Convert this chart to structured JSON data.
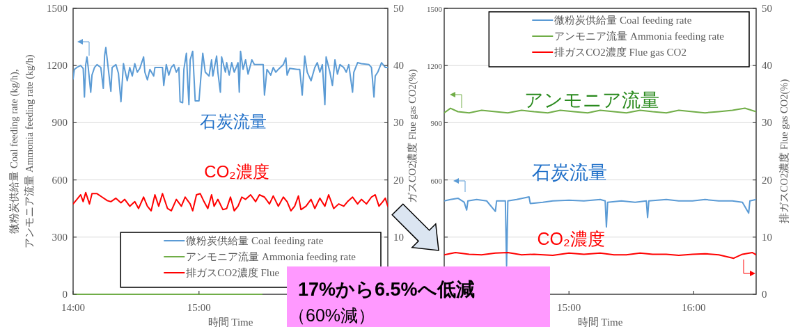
{
  "chart_data": [
    {
      "type": "line",
      "xlabel": "時間 Time",
      "ylabel": "微粉炭供給量 Coal feeding rate (kg/h),\nアンモニア流量 Ammonia feeding rate (kg/h)",
      "y2label": "ガスCO2濃度 Flue gas CO2(%)",
      "xlim": [
        14,
        16.5
      ],
      "xticks": [
        {
          "value": 14,
          "label": "14:00"
        },
        {
          "value": 15,
          "label": "15:00"
        },
        {
          "value": 16,
          "label": null
        }
      ],
      "ylim": [
        0,
        1500
      ],
      "yticks": [
        0,
        300,
        600,
        900,
        1200,
        1500
      ],
      "y2lim": [
        0,
        50
      ],
      "y2ticks": [
        10,
        20,
        30,
        40,
        50
      ],
      "grid": "y",
      "legend": "bottom right",
      "marker": "none",
      "line_style": "solid",
      "annotations": [
        "石炭流量",
        "CO₂濃度",
        "17%から6.5%へ低減",
        "（60%減）"
      ],
      "series": [
        {
          "name": "微粉炭供給量 Coal feeding rate",
          "color": "#5b9bd5",
          "x": [
            14.0,
            14.01,
            14.03,
            14.06,
            14.08,
            14.09,
            14.1,
            14.11,
            14.12,
            14.14,
            14.15,
            14.17,
            14.19,
            14.22,
            14.24,
            14.25,
            14.26,
            14.28,
            14.3,
            14.31,
            14.34,
            14.36,
            14.38,
            14.4,
            14.41,
            14.43,
            14.45,
            14.47,
            14.49,
            14.51,
            14.53,
            14.56,
            14.57,
            14.59,
            14.61,
            14.64,
            14.65,
            14.71,
            14.72,
            14.74,
            14.76,
            14.78,
            14.8,
            14.82,
            14.84,
            14.85,
            14.87,
            14.88,
            14.9,
            14.91,
            14.92,
            14.93,
            14.95,
            14.97,
            15.0,
            15.02,
            15.03,
            15.05,
            15.08,
            15.1,
            15.11,
            15.14,
            15.15,
            15.17,
            15.18,
            15.21,
            15.22,
            15.24,
            15.26,
            15.28,
            15.31,
            15.32,
            15.33,
            15.35,
            15.37,
            15.39,
            15.42,
            15.44,
            15.48,
            15.51,
            15.52,
            15.54,
            15.57,
            15.59,
            15.61,
            15.63,
            15.67,
            15.69,
            15.7,
            15.72,
            15.78,
            15.8,
            15.82,
            15.84,
            15.86,
            15.89,
            15.92,
            15.94,
            15.96,
            15.98,
            16.0,
            16.01,
            16.04,
            16.06,
            16.08,
            16.1,
            16.12,
            16.15,
            16.17,
            16.19,
            16.22,
            16.23,
            16.26,
            16.29,
            16.35,
            16.37,
            16.39,
            16.4,
            16.42,
            16.45,
            16.48,
            16.5
          ],
          "values": [
            1130,
            1180,
            1190,
            1200,
            1185,
            1035,
            1205,
            1245,
            1190,
            1060,
            1150,
            1190,
            1205,
            1190,
            1080,
            1250,
            1295,
            1180,
            1065,
            1190,
            1205,
            1160,
            1010,
            1210,
            1180,
            1120,
            1190,
            1145,
            1210,
            1165,
            1185,
            1245,
            1165,
            1125,
            1180,
            1145,
            1190,
            1190,
            1095,
            1205,
            1150,
            1190,
            1205,
            1165,
            1190,
            1010,
            1005,
            1180,
            1265,
            1120,
            995,
            1230,
            1275,
            1015,
            1015,
            1180,
            1265,
            1165,
            1145,
            1230,
            1145,
            1250,
            1165,
            1060,
            1245,
            1165,
            1215,
            1150,
            1215,
            1165,
            1215,
            1060,
            1275,
            1180,
            1230,
            1155,
            1230,
            1205,
            1205,
            1205,
            1045,
            1180,
            1150,
            1190,
            1165,
            1180,
            1205,
            1240,
            1150,
            1185,
            1180,
            1180,
            1045,
            1250,
            1165,
            1120,
            1190,
            1215,
            1165,
            1205,
            995,
            1245,
            1165,
            1095,
            1230,
            1155,
            1205,
            1190,
            1165,
            1205,
            1060,
            1165,
            1215,
            1210,
            1205,
            1190,
            1035,
            1145,
            1165,
            1215,
            1190,
            1190
          ]
        },
        {
          "name": "アンモニア流量 Ammonia feeding rate",
          "color": "#70ad47",
          "x": [
            14,
            15.5
          ],
          "values": [
            0,
            0
          ]
        },
        {
          "name": "排ガスCO2濃度 Flue",
          "color": "#ff0000",
          "axis": "y2",
          "x": [
            14.0,
            14.03,
            14.06,
            14.08,
            14.1,
            14.13,
            14.15,
            14.19,
            14.23,
            14.27,
            14.3,
            14.34,
            14.38,
            14.41,
            14.45,
            14.49,
            14.52,
            14.56,
            14.59,
            14.62,
            14.65,
            14.68,
            14.71,
            14.75,
            14.78,
            14.82,
            14.86,
            14.89,
            14.93,
            14.95,
            14.98,
            15.01,
            15.04,
            15.07,
            15.1,
            15.12,
            15.15,
            15.19,
            15.22,
            15.25,
            15.28,
            15.31,
            15.34,
            15.37,
            15.41,
            15.45,
            15.48,
            15.52,
            15.56,
            15.59,
            15.63,
            15.67,
            15.7,
            15.73,
            15.76,
            15.79,
            15.81,
            15.85,
            15.89,
            15.92,
            15.96,
            16.0,
            16.03,
            16.07,
            16.11,
            16.15,
            16.18,
            16.22,
            16.26,
            16.29,
            16.33,
            16.37,
            16.4,
            16.43,
            16.46,
            16.48,
            16.5
          ],
          "values": [
            15.8,
            16.6,
            17.4,
            16.2,
            17.8,
            15.8,
            17.6,
            17.6,
            17.0,
            16.4,
            16.2,
            16.8,
            16.0,
            16.6,
            15.4,
            16.2,
            15.0,
            17.0,
            15.4,
            14.6,
            17.4,
            15.4,
            17.6,
            15.0,
            14.6,
            16.6,
            15.4,
            17.0,
            15.8,
            14.6,
            17.4,
            17.6,
            16.2,
            15.0,
            17.4,
            15.4,
            16.6,
            14.8,
            15.0,
            17.0,
            14.6,
            15.4,
            17.0,
            16.6,
            17.4,
            16.2,
            17.4,
            17.0,
            15.8,
            17.2,
            15.4,
            17.0,
            16.2,
            14.6,
            15.4,
            17.2,
            14.8,
            15.4,
            16.6,
            15.0,
            16.8,
            15.4,
            17.4,
            15.0,
            15.8,
            15.4,
            16.2,
            17.0,
            15.8,
            16.6,
            15.8,
            17.0,
            17.4,
            15.4,
            16.2,
            16.8,
            15.4
          ]
        }
      ]
    },
    {
      "type": "line",
      "xlabel": "時間 Time",
      "y2label": "排ガスCO2濃度 Flue gas CO2(%)",
      "xlim": [
        14,
        16.5
      ],
      "xticks": [
        {
          "value": 14,
          "label": null
        },
        {
          "value": 15,
          "label": "15:00"
        },
        {
          "value": 16,
          "label": "16:00"
        }
      ],
      "ylim": [
        0,
        1500
      ],
      "yticks": [
        {
          "value": 300,
          "label": null
        },
        600,
        900,
        1200,
        1500
      ],
      "y2lim": [
        0,
        50
      ],
      "y2ticks": [
        0,
        10,
        20,
        30,
        40,
        50
      ],
      "grid": "y",
      "legend": "top right",
      "marker": "none",
      "line_style": "solid",
      "annotations": [
        "アンモニア流量",
        "石炭流量",
        "CO₂濃度"
      ],
      "series": [
        {
          "name": "微粉炭供給量 Coal feeding rate",
          "color": "#5b9bd5",
          "x": [
            14.0,
            14.05,
            14.11,
            14.16,
            14.18,
            14.19,
            14.26,
            14.34,
            14.41,
            14.42,
            14.49,
            14.5,
            14.51,
            14.58,
            14.68,
            14.69,
            14.79,
            14.87,
            15.0,
            15.12,
            15.25,
            15.29,
            15.3,
            15.31,
            15.42,
            15.53,
            15.62,
            15.63,
            15.64,
            15.78,
            15.88,
            15.99,
            16.09,
            16.2,
            16.31,
            16.39,
            16.44,
            16.45,
            16.5
          ],
          "values": [
            490,
            497,
            504,
            483,
            442,
            490,
            497,
            490,
            435,
            490,
            490,
            150,
            490,
            497,
            511,
            476,
            483,
            490,
            494,
            490,
            497,
            490,
            353,
            483,
            490,
            483,
            490,
            403,
            490,
            497,
            490,
            490,
            497,
            490,
            490,
            483,
            426,
            490,
            497
          ]
        },
        {
          "name": "アンモニア流量 Ammonia feeding rate",
          "color": "#70ad47",
          "x": [
            14.0,
            14.05,
            14.11,
            14.2,
            14.3,
            14.41,
            14.51,
            14.62,
            14.72,
            14.83,
            14.93,
            15.04,
            15.15,
            15.25,
            15.36,
            15.46,
            15.57,
            15.67,
            15.78,
            15.88,
            15.99,
            16.09,
            16.2,
            16.31,
            16.41,
            16.5
          ],
          "values": [
            952,
            976,
            958,
            952,
            965,
            958,
            952,
            965,
            958,
            952,
            965,
            958,
            952,
            965,
            958,
            952,
            965,
            958,
            952,
            965,
            958,
            952,
            958,
            965,
            976,
            958
          ]
        },
        {
          "name": "排ガスCO2濃度 Flue gas CO2",
          "color": "#ff0000",
          "axis": "y2",
          "x": [
            14.0,
            14.09,
            14.2,
            14.3,
            14.41,
            14.51,
            14.62,
            14.72,
            14.87,
            15.0,
            15.12,
            15.25,
            15.36,
            15.46,
            15.57,
            15.67,
            15.78,
            15.88,
            15.99,
            16.09,
            16.2,
            16.32,
            16.39,
            16.47,
            16.5
          ],
          "values": [
            6.9,
            7.3,
            7.0,
            6.9,
            7.2,
            7.3,
            6.9,
            7.0,
            6.8,
            7.2,
            7.0,
            7.2,
            6.9,
            6.9,
            7.2,
            7.0,
            7.0,
            6.8,
            7.0,
            7.1,
            6.9,
            6.3,
            7.0,
            7.3,
            6.9
          ]
        }
      ]
    }
  ]
}
